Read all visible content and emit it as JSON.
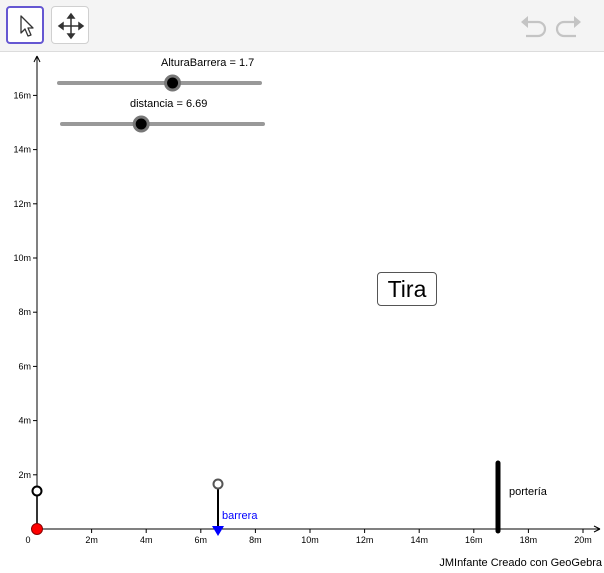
{
  "toolbar": {
    "tools": [
      {
        "name": "move-tool",
        "icon": "cursor-arrow-icon",
        "active": true
      },
      {
        "name": "move-graphics-view-tool",
        "icon": "move-cross-icon",
        "active": false
      }
    ],
    "undo_icon": "undo-icon",
    "redo_icon": "redo-icon"
  },
  "sliders": [
    {
      "name": "AlturaBarrera",
      "label": "AlturaBarrera = 1.7",
      "value": 1.7,
      "fraction": 0.565
    },
    {
      "name": "distancia",
      "label": "distancia = 6.69",
      "value": 6.69,
      "fraction": 0.394
    }
  ],
  "button": {
    "label": "Tira"
  },
  "axes": {
    "x_ticks": [
      "0",
      "2m",
      "4m",
      "6m",
      "8m",
      "10m",
      "12m",
      "14m",
      "16m",
      "18m",
      "20m"
    ],
    "y_ticks": [
      "2m",
      "4m",
      "6m",
      "8m",
      "10m",
      "12m",
      "14m",
      "16m"
    ]
  },
  "objects": {
    "barrera_label": "barrera",
    "porteria_label": "portería"
  },
  "colors": {
    "accent": "#6557d2",
    "ball": "#ff0000",
    "barrera_point": "#0000ff",
    "slider_track": "#999999"
  },
  "credit": "JMInfante Creado con GeoGebra"
}
